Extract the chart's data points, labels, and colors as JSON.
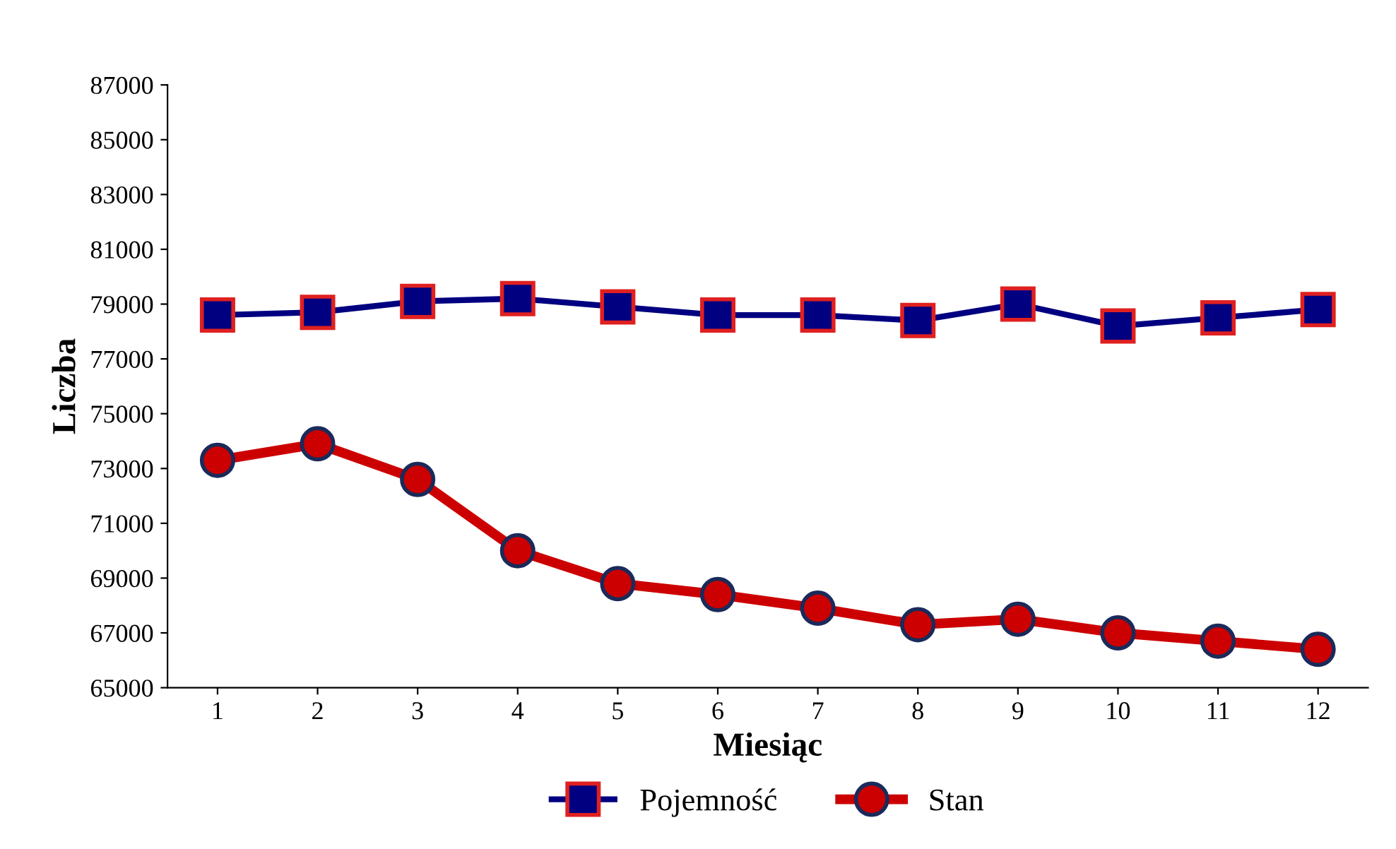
{
  "chart_data": {
    "type": "line",
    "xlabel": "Miesiąc",
    "ylabel": "Liczba",
    "categories": [
      "1",
      "2",
      "3",
      "4",
      "5",
      "6",
      "7",
      "8",
      "9",
      "10",
      "11",
      "12"
    ],
    "series": [
      {
        "name": "Pojemność",
        "color": "#000080",
        "marker": "square",
        "values": [
          78600,
          78700,
          79100,
          79200,
          78900,
          78600,
          78600,
          78400,
          79000,
          78200,
          78500,
          78800
        ]
      },
      {
        "name": "Stan",
        "color": "#cc0000",
        "marker": "circle",
        "values": [
          73300,
          73900,
          72600,
          70000,
          68800,
          68400,
          67900,
          67300,
          67500,
          67000,
          66700,
          66400
        ]
      }
    ],
    "ylim": [
      65000,
      87000
    ],
    "yticks": [
      65000,
      67000,
      69000,
      71000,
      73000,
      75000,
      77000,
      79000,
      81000,
      83000,
      85000,
      87000
    ],
    "grid": false,
    "legend": "bottom",
    "line_style": "solid"
  }
}
